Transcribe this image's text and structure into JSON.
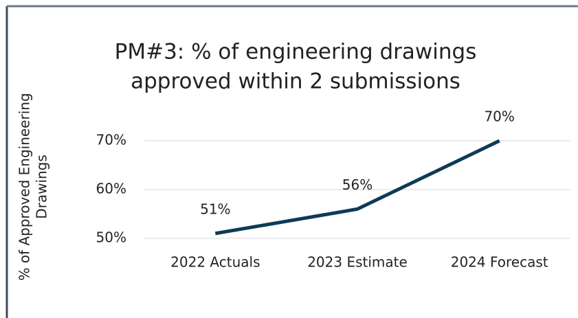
{
  "chart_data": {
    "type": "line",
    "title": [
      "PM#3: % of engineering drawings",
      "approved within 2 submissions"
    ],
    "y_label": [
      "% of Approved Engineering",
      "Drawings"
    ],
    "categories": [
      "2022 Actuals",
      "2023 Estimate",
      "2024 Forecast"
    ],
    "values": [
      51,
      56,
      70
    ],
    "value_labels": [
      "51%",
      "56%",
      "70%"
    ],
    "color": "#0d3b56",
    "ylim": [
      50,
      70
    ],
    "yticks": [
      {
        "value": 50,
        "label": "50%"
      },
      {
        "value": 60,
        "label": "60%"
      },
      {
        "value": 70,
        "label": "70%"
      }
    ],
    "grid": true
  }
}
